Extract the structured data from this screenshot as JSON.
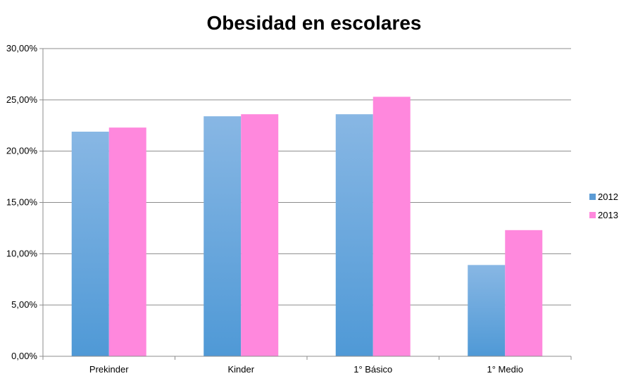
{
  "chart_data": {
    "type": "bar",
    "title": "Obesidad en escolares",
    "xlabel": "",
    "ylabel": "",
    "categories": [
      "Prekinder",
      "Kinder",
      "1° Básico",
      "1° Medio"
    ],
    "series": [
      {
        "name": "2012",
        "values": [
          0.219,
          0.234,
          0.236,
          0.089
        ],
        "color": "#5b9bd5",
        "color_light": "#85b5e3",
        "color_dark": "#4f97d6"
      },
      {
        "name": "2013",
        "values": [
          0.223,
          0.236,
          0.253,
          0.123
        ],
        "color": "#ff88dd"
      }
    ],
    "ylim": [
      0,
      0.3
    ],
    "yticks": [
      0,
      0.05,
      0.1,
      0.15,
      0.2,
      0.25,
      0.3
    ],
    "ytick_labels": [
      "0,00%",
      "5,00%",
      "10,00%",
      "15,00%",
      "20,00%",
      "25,00%",
      "30,00%"
    ],
    "grid": true,
    "legend_position": "right"
  }
}
